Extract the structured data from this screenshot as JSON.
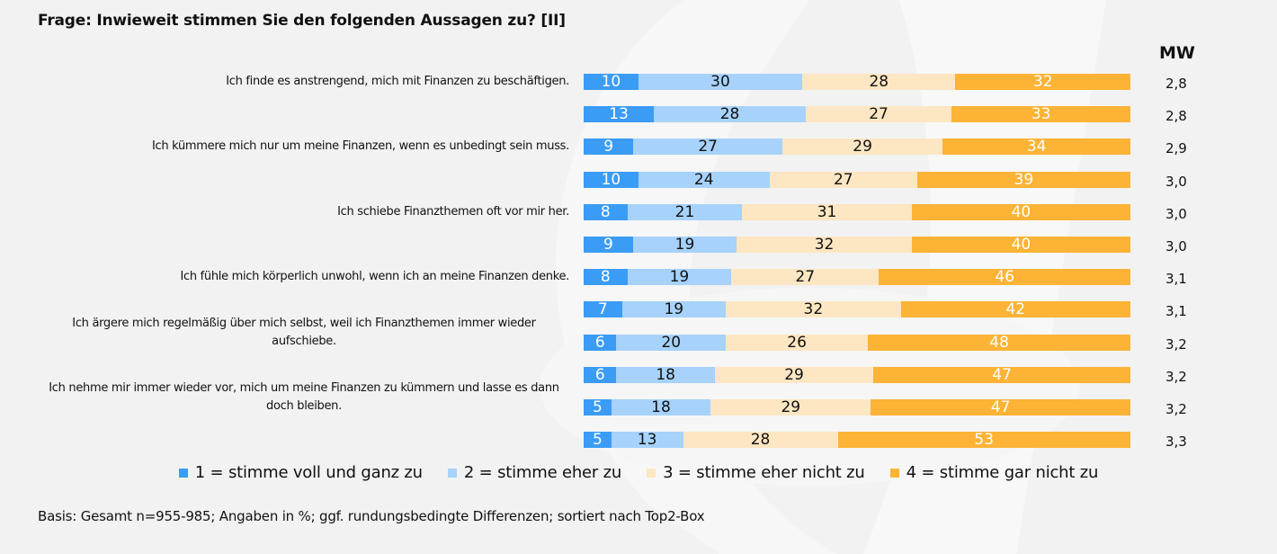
{
  "title": "Frage: Inwieweit stimmen Sie den folgenden Aussagen zu? [II]",
  "mw_header": "MW",
  "footnote": "Basis: Gesamt n=955-985; Angaben in %; ggf. rundungsbedingte Differenzen; sortiert nach Top2-Box",
  "colors": {
    "cat1": "#3b9cf5",
    "cat2": "#a6d2fb",
    "cat3": "#fde6c2",
    "cat4": "#fdb335",
    "text_dark": "#111111",
    "text_light": "#ffffff"
  },
  "chart_data": {
    "type": "bar",
    "orientation": "horizontal",
    "stacked": true,
    "title": "Frage: Inwieweit stimmen Sie den folgenden Aussagen zu? [II]",
    "xlabel": "",
    "ylabel": "",
    "xlim": [
      0,
      100
    ],
    "unit": "%",
    "grid": false,
    "legend_position": "bottom",
    "statements": [
      "Ich finde es anstrengend, mich mit Finanzen zu beschäftigen.",
      "Ich kümmere mich nur um meine Finanzen, wenn es unbedingt sein muss.",
      "Ich schiebe Finanzthemen oft vor mir her.",
      "Ich fühle mich körperlich unwohl, wenn ich an meine Finanzen denke.",
      "Ich ärgere mich regelmäßig über mich selbst, weil ich Finanzthemen immer wieder aufschiebe.",
      "Ich nehme mir immer wieder vor, mich um meine Finanzen zu kümmern und lasse es dann doch bleiben."
    ],
    "categories": [
      "Ich finde es anstrengend, mich mit Finanzen zu beschäftigen.",
      "",
      "Ich kümmere mich nur um meine Finanzen, wenn es unbedingt sein muss.",
      "",
      "Ich schiebe Finanzthemen oft vor mir her.",
      "",
      "Ich fühle mich körperlich unwohl, wenn ich an meine Finanzen denke.",
      "",
      "Ich ärgere mich regelmäßig über mich selbst, weil ich Finanzthemen immer wieder aufschiebe.",
      "",
      "Ich nehme mir immer wieder vor, mich um meine Finanzen zu kümmern und lasse es dann doch bleiben.",
      ""
    ],
    "series": [
      {
        "name": "1 = stimme voll und ganz zu",
        "color": "#3b9cf5",
        "values": [
          10,
          13,
          9,
          10,
          8,
          9,
          8,
          7,
          6,
          6,
          5,
          5
        ]
      },
      {
        "name": "2 = stimme eher zu",
        "color": "#a6d2fb",
        "values": [
          30,
          28,
          27,
          24,
          21,
          19,
          19,
          19,
          20,
          18,
          18,
          13
        ]
      },
      {
        "name": "3 = stimme eher nicht zu",
        "color": "#fde6c2",
        "values": [
          28,
          27,
          29,
          27,
          31,
          32,
          27,
          32,
          26,
          29,
          29,
          28
        ]
      },
      {
        "name": "4 = stimme gar nicht zu",
        "color": "#fdb335",
        "values": [
          32,
          33,
          34,
          39,
          40,
          40,
          46,
          42,
          48,
          47,
          47,
          53
        ]
      }
    ],
    "mean_values": [
      "2,8",
      "2,8",
      "2,9",
      "3,0",
      "3,0",
      "3,0",
      "3,1",
      "3,1",
      "3,2",
      "3,2",
      "3,2",
      "3,3"
    ]
  }
}
